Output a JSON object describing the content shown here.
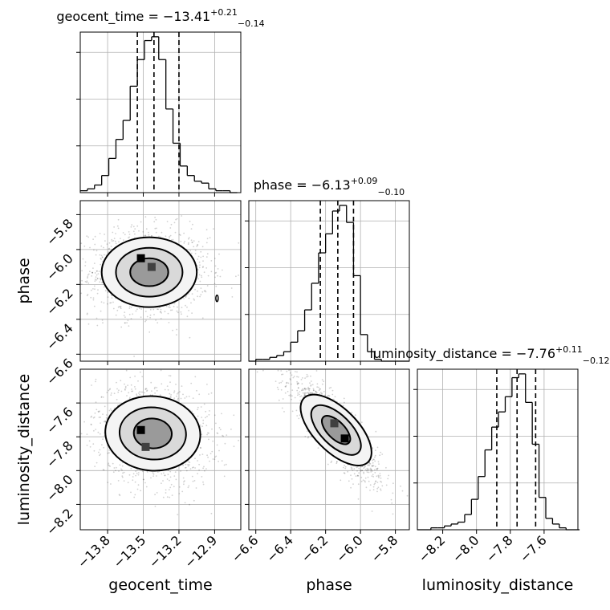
{
  "chart_data": {
    "type": "corner",
    "grid": true,
    "parameters": [
      "geocent_time",
      "phase",
      "luminosity_distance"
    ],
    "ranges": {
      "geocent_time": [
        -14.03,
        -12.68
      ],
      "phase": [
        -6.64,
        -5.72
      ],
      "luminosity_distance": [
        -8.35,
        -7.4
      ]
    },
    "ticks": {
      "geocent_time": {
        "values": [
          -13.8,
          -13.5,
          -13.2,
          -12.9
        ],
        "labels": [
          "−13.8",
          "−13.5",
          "−13.2",
          "−12.9"
        ]
      },
      "phase": {
        "values": [
          -6.6,
          -6.4,
          -6.2,
          -6.0,
          -5.8
        ],
        "labels": [
          "−6.6",
          "−6.4",
          "−6.2",
          "−6.0",
          "−5.8"
        ]
      },
      "luminosity_distance": {
        "values": [
          -8.2,
          -8.0,
          -7.8,
          -7.6
        ],
        "labels": [
          "−8.2",
          "−8.0",
          "−7.8",
          "−7.6"
        ]
      }
    },
    "axis_labels": {
      "geocent_time": "geocent_time",
      "phase": "phase",
      "luminosity_distance": "luminosity_distance"
    },
    "marginals": [
      {
        "param": "geocent_time",
        "title_main": "geocent_time = −13.41",
        "title_plus": "+0.21",
        "title_minus": "−0.14",
        "median": -13.41,
        "quantiles": [
          -13.55,
          -13.41,
          -13.2
        ],
        "bin_edges": [
          -14.03,
          -13.97,
          -13.91,
          -13.85,
          -13.79,
          -13.73,
          -13.67,
          -13.61,
          -13.55,
          -13.49,
          -13.43,
          -13.37,
          -13.31,
          -13.25,
          -13.19,
          -13.13,
          -13.07,
          -13.01,
          -12.95,
          -12.89,
          -12.83,
          -12.77,
          -12.71
        ],
        "counts": [
          1,
          2,
          4,
          9,
          18,
          28,
          38,
          56,
          70,
          80,
          82,
          70,
          44,
          26,
          14,
          9,
          6,
          5,
          2,
          1,
          1,
          0
        ]
      },
      {
        "param": "phase",
        "title_main": "phase = −6.13",
        "title_plus": "+0.09",
        "title_minus": "−0.10",
        "median": -6.13,
        "quantiles": [
          -6.23,
          -6.13,
          -6.04
        ],
        "bin_edges": [
          -6.64,
          -6.6,
          -6.56,
          -6.52,
          -6.48,
          -6.44,
          -6.4,
          -6.36,
          -6.32,
          -6.28,
          -6.24,
          -6.2,
          -6.16,
          -6.12,
          -6.08,
          -6.04,
          -6.0,
          -5.96,
          -5.92,
          -5.88,
          -5.84,
          -5.8,
          -5.76,
          -5.72
        ],
        "counts": [
          0,
          1,
          1,
          2,
          3,
          5,
          10,
          16,
          27,
          41,
          57,
          67,
          79,
          82,
          73,
          45,
          14,
          5,
          1,
          0,
          0,
          0,
          0
        ]
      },
      {
        "param": "luminosity_distance",
        "title_main": "luminosity_distance = −7.76",
        "title_plus": "+0.11",
        "title_minus": "−0.12",
        "median": -7.76,
        "quantiles": [
          -7.88,
          -7.76,
          -7.65
        ],
        "bin_edges": [
          -8.35,
          -8.31,
          -8.27,
          -8.23,
          -8.19,
          -8.15,
          -8.11,
          -8.07,
          -8.03,
          -7.99,
          -7.95,
          -7.91,
          -7.87,
          -7.83,
          -7.79,
          -7.75,
          -7.71,
          -7.67,
          -7.63,
          -7.59,
          -7.55,
          -7.51,
          -7.47,
          -7.43,
          -7.39
        ],
        "counts": [
          0,
          0,
          1,
          1,
          2,
          3,
          4,
          8,
          16,
          28,
          42,
          54,
          62,
          70,
          80,
          82,
          67,
          45,
          17,
          6,
          3,
          1,
          0,
          0
        ]
      }
    ],
    "joints": [
      {
        "x": "geocent_time",
        "y": "phase",
        "center": [
          -13.45,
          -6.13
        ],
        "spread": [
          0.2,
          0.1
        ],
        "rho": 0.0,
        "peaks": [
          [
            -13.52,
            -6.05
          ],
          [
            -13.43,
            -6.1
          ]
        ],
        "outlier_contour": [
          -12.88,
          -6.28
        ]
      },
      {
        "x": "geocent_time",
        "y": "luminosity_distance",
        "center": [
          -13.42,
          -7.78
        ],
        "spread": [
          0.19,
          0.12
        ],
        "rho": -0.15,
        "peaks": [
          [
            -13.52,
            -7.76
          ],
          [
            -13.48,
            -7.86
          ]
        ],
        "outlier_contour": null
      },
      {
        "x": "phase",
        "y": "luminosity_distance",
        "center": [
          -6.14,
          -7.76
        ],
        "spread": [
          0.1,
          0.12
        ],
        "rho": -0.85,
        "peaks": [
          [
            -6.09,
            -7.81
          ],
          [
            -6.15,
            -7.72
          ]
        ],
        "outlier_contour": null
      }
    ]
  }
}
